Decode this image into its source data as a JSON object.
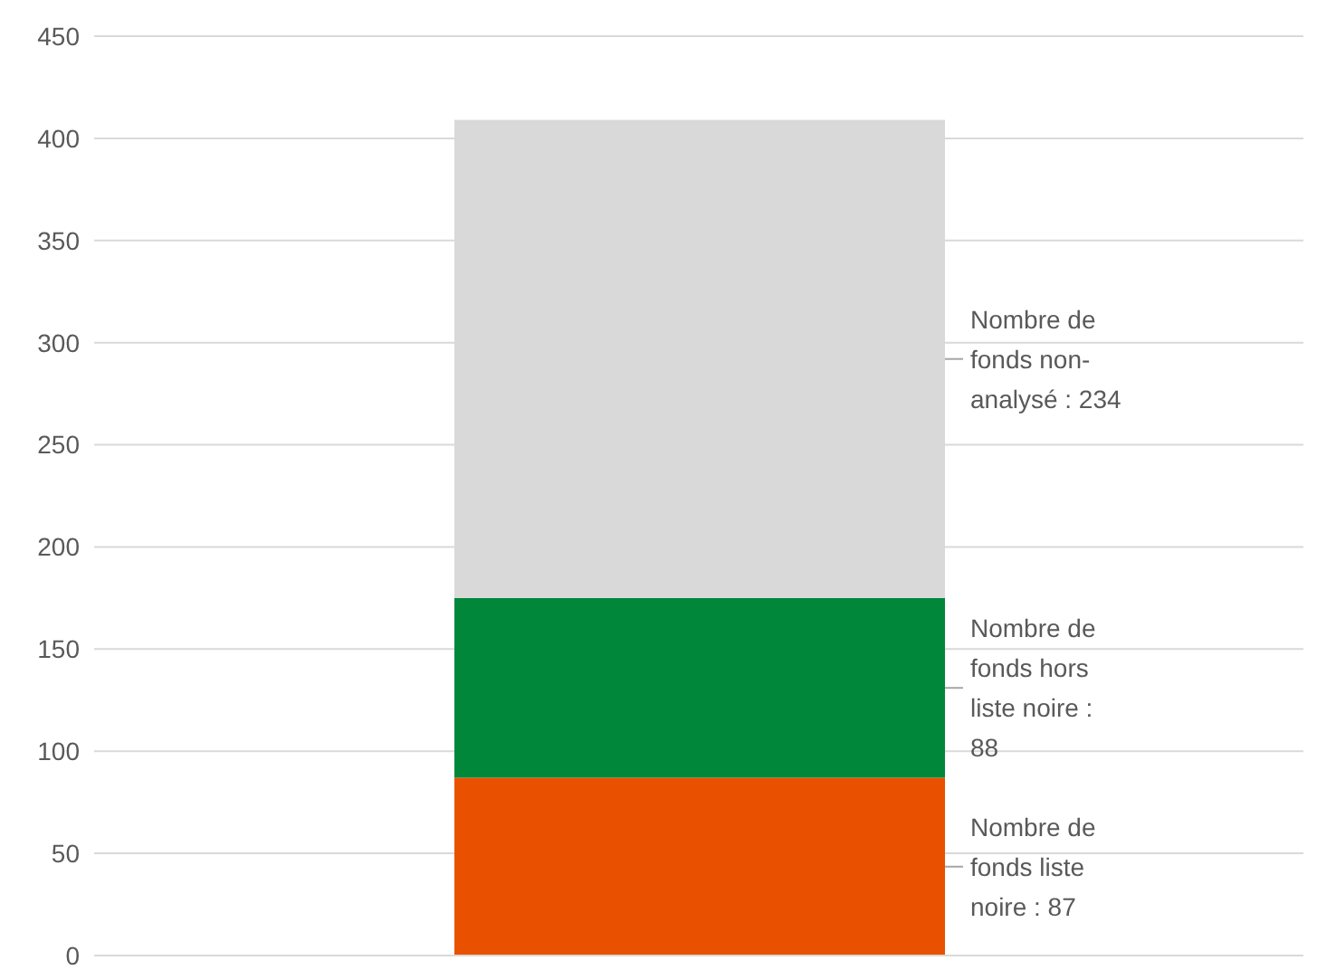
{
  "chart_data": {
    "type": "bar",
    "stacked": true,
    "categories": [
      null
    ],
    "series": [
      {
        "color": "#e95000",
        "values": [
          87
        ],
        "value_labels": [
          "Nombre de fonds liste noire : 87"
        ]
      },
      {
        "color": "#00873a",
        "values": [
          88
        ],
        "value_labels": [
          "Nombre de fonds hors liste noire : 88"
        ]
      },
      {
        "color": "#d9d9d9",
        "values": [
          234
        ],
        "value_labels": [
          "Nombre de fonds non-analysé : 234"
        ]
      }
    ],
    "ylim": [
      0,
      450
    ],
    "yticks": [
      0,
      50,
      100,
      150,
      200,
      250,
      300,
      350,
      400,
      450
    ],
    "grid": "y",
    "legend": false
  }
}
